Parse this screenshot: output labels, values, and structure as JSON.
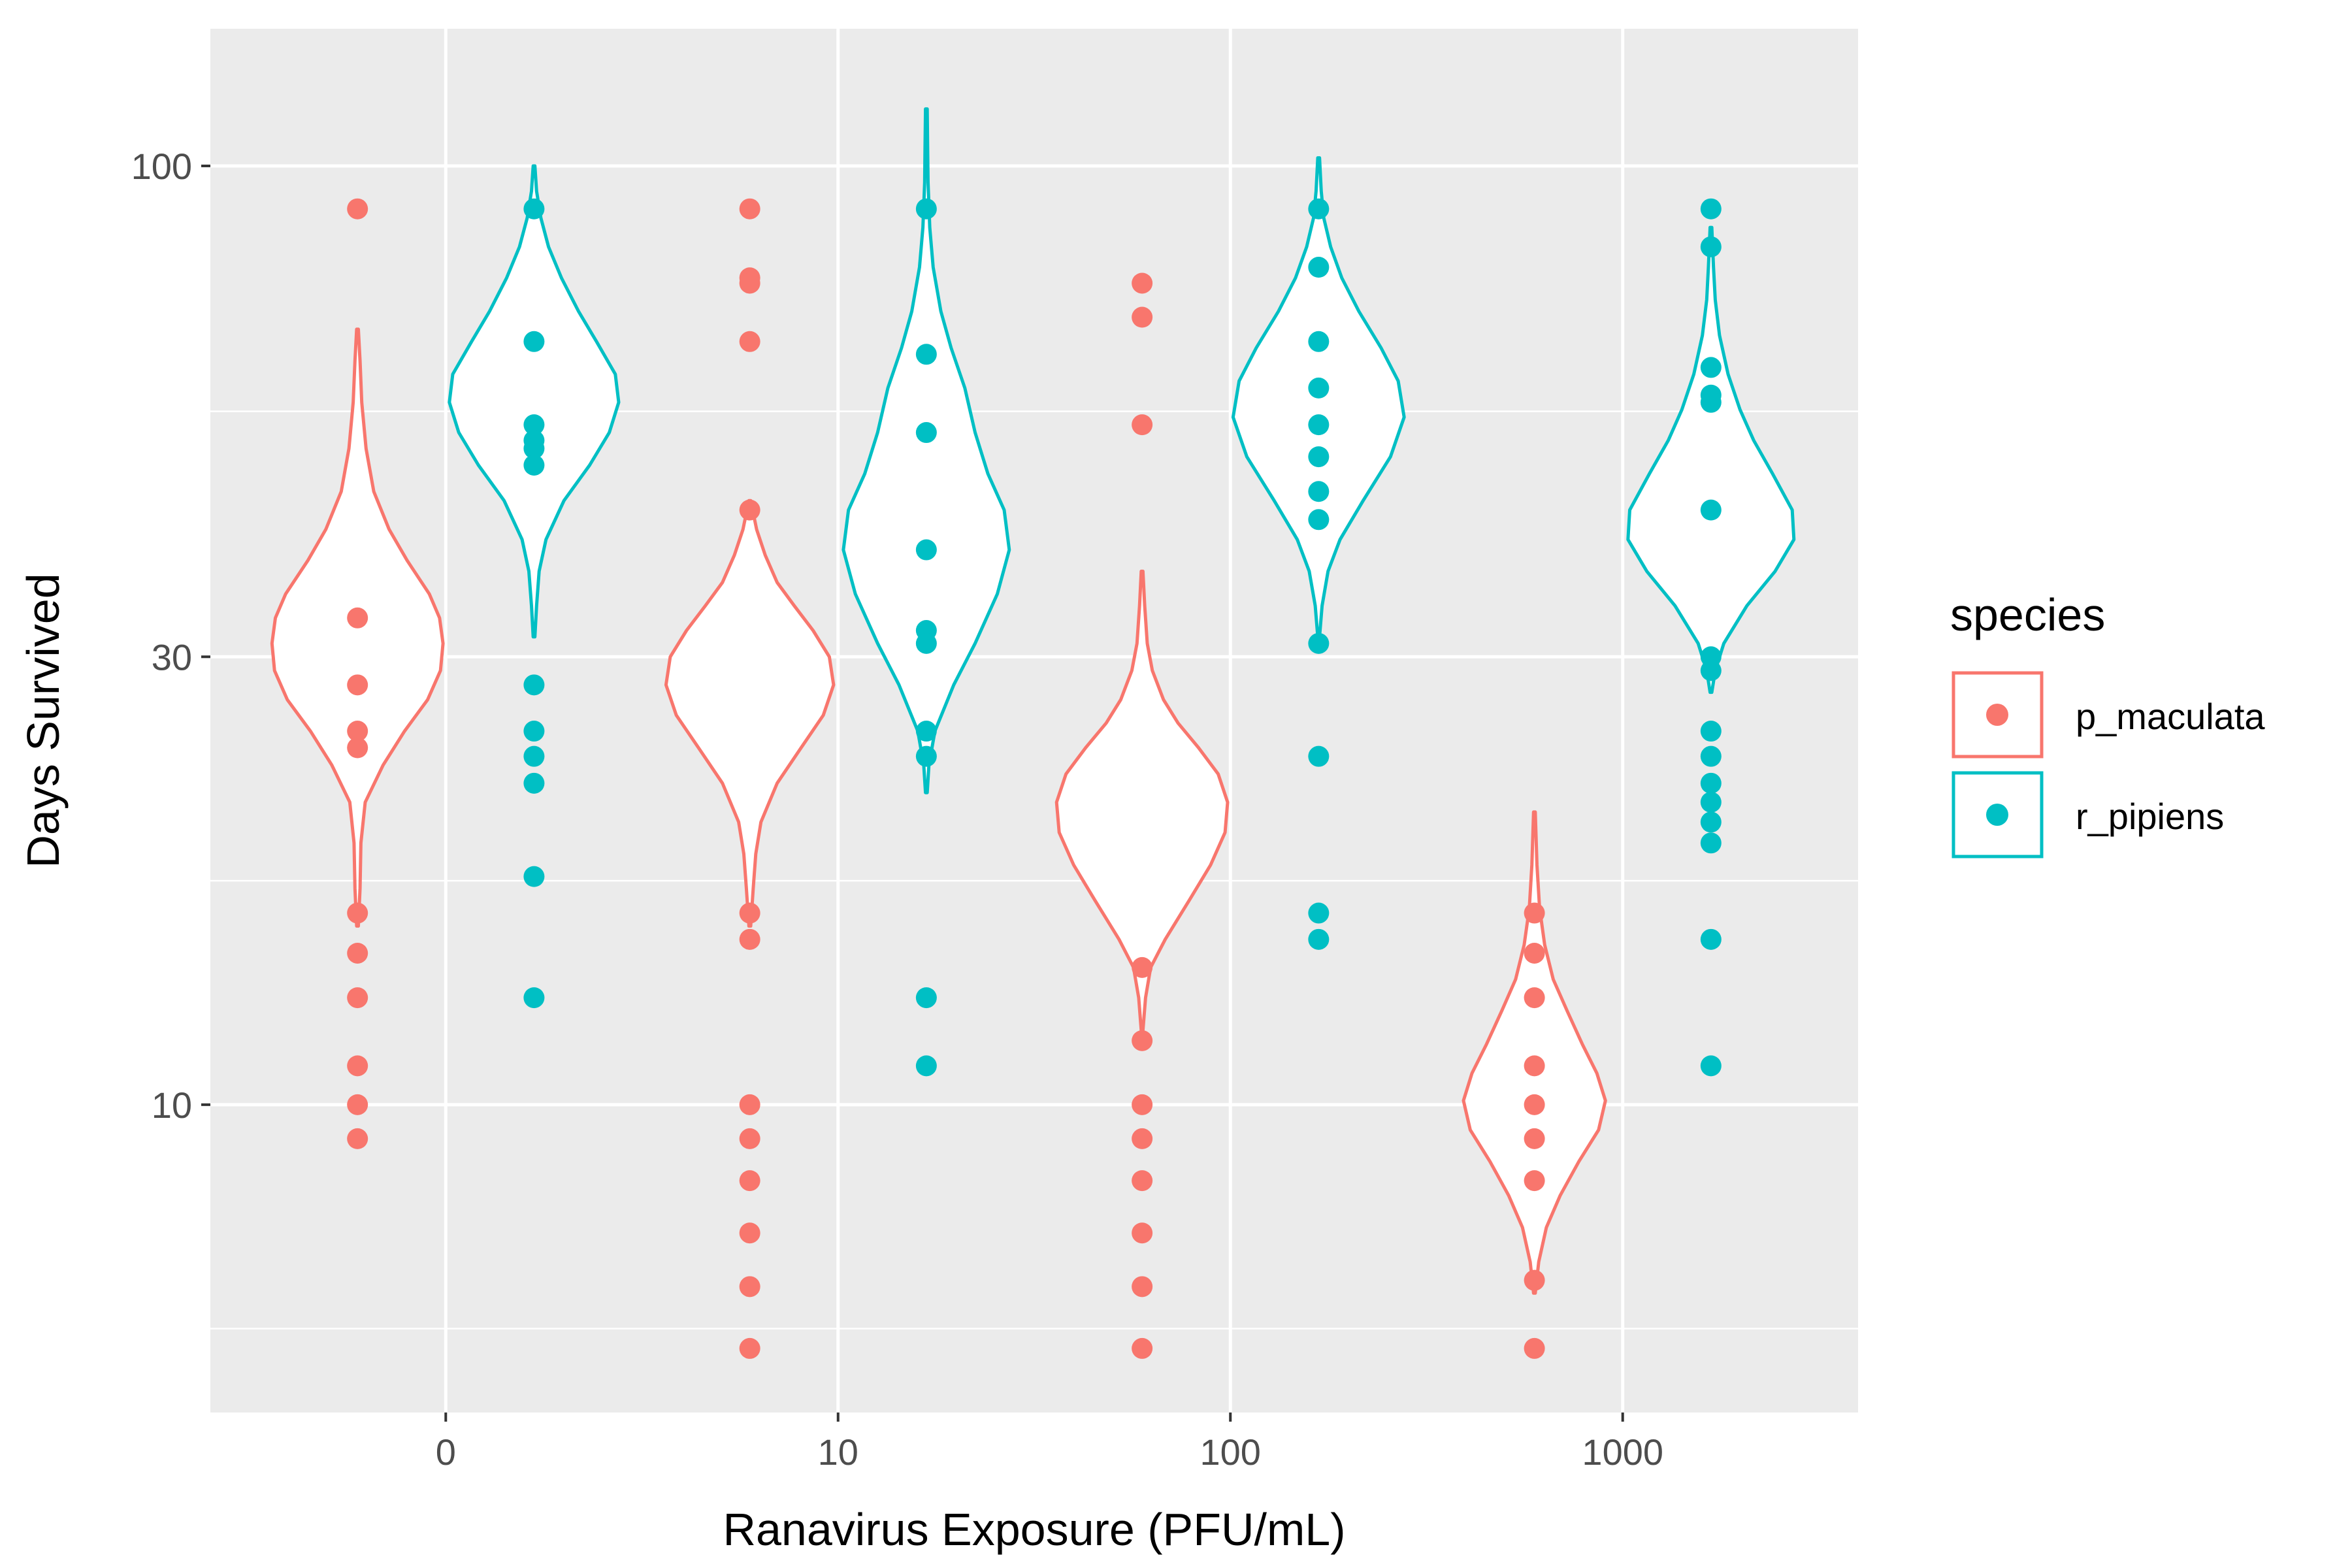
{
  "chart_data": {
    "type": "violin",
    "xlabel": "Ranavirus Exposure (PFU/mL)",
    "ylabel": "Days Survived",
    "y_scale": "log10",
    "ylim": [
      4.7,
      140
    ],
    "y_ticks": [
      10,
      30,
      100
    ],
    "y_tick_labels": [
      "10",
      "30",
      "100"
    ],
    "categories": [
      "0",
      "10",
      "100",
      "1000"
    ],
    "legend": {
      "title": "species",
      "position": "right",
      "entries": [
        "p_maculata",
        "r_pipiens"
      ]
    },
    "grid": true,
    "colors": {
      "p_maculata": "#F8766D",
      "r_pipiens": "#00BFC4",
      "panel": "#EBEBEB"
    },
    "series": [
      {
        "name": "p_maculata",
        "groups": [
          {
            "category": "0",
            "points": [
              90,
              33,
              28,
              25,
              24,
              16,
              14.5,
              13,
              11,
              10,
              9.2
            ],
            "violin_range": [
              15.5,
              67
            ],
            "violin_profile": [
              [
                15.5,
                0.01
              ],
              [
                17,
                0.03
              ],
              [
                19,
                0.04
              ],
              [
                21,
                0.09
              ],
              [
                23,
                0.3
              ],
              [
                25,
                0.55
              ],
              [
                27,
                0.82
              ],
              [
                29,
                0.97
              ],
              [
                31,
                1.0
              ],
              [
                33,
                0.96
              ],
              [
                35,
                0.84
              ],
              [
                38,
                0.58
              ],
              [
                41,
                0.37
              ],
              [
                45,
                0.19
              ],
              [
                50,
                0.1
              ],
              [
                56,
                0.05
              ],
              [
                62,
                0.03
              ],
              [
                67,
                0.01
              ]
            ]
          },
          {
            "category": "10",
            "points": [
              90,
              76,
              75,
              65,
              43,
              16,
              15,
              10,
              9.2,
              8.3,
              7.3,
              6.4,
              5.5
            ],
            "violin_range": [
              15.5,
              44
            ],
            "violin_profile": [
              [
                15.5,
                0.01
              ],
              [
                17,
                0.04
              ],
              [
                18.5,
                0.07
              ],
              [
                20,
                0.13
              ],
              [
                22,
                0.32
              ],
              [
                24,
                0.6
              ],
              [
                26,
                0.86
              ],
              [
                28,
                0.98
              ],
              [
                30,
                0.93
              ],
              [
                32,
                0.74
              ],
              [
                34,
                0.52
              ],
              [
                36,
                0.32
              ],
              [
                38.5,
                0.18
              ],
              [
                41,
                0.08
              ],
              [
                44,
                0.01
              ]
            ]
          },
          {
            "category": "100",
            "points": [
              75,
              69,
              53,
              14,
              11.7,
              10,
              9.2,
              8.3,
              7.3,
              6.4,
              5.5
            ],
            "violin_range": [
              12,
              37
            ],
            "violin_profile": [
              [
                12,
                0.01
              ],
              [
                13,
                0.04
              ],
              [
                14,
                0.1
              ],
              [
                15,
                0.27
              ],
              [
                16.5,
                0.55
              ],
              [
                18,
                0.8
              ],
              [
                19.5,
                0.97
              ],
              [
                21,
                1.0
              ],
              [
                22.5,
                0.89
              ],
              [
                24,
                0.66
              ],
              [
                25.5,
                0.42
              ],
              [
                27,
                0.25
              ],
              [
                29,
                0.12
              ],
              [
                31,
                0.06
              ],
              [
                34,
                0.03
              ],
              [
                37,
                0.01
              ]
            ]
          },
          {
            "category": "1000",
            "points": [
              16,
              14.5,
              13,
              11,
              10,
              9.2,
              8.3,
              6.5,
              5.5
            ],
            "violin_range": [
              6.3,
              20.5
            ],
            "violin_profile": [
              [
                6.3,
                0.01
              ],
              [
                6.8,
                0.05
              ],
              [
                7.4,
                0.14
              ],
              [
                8,
                0.3
              ],
              [
                8.7,
                0.52
              ],
              [
                9.4,
                0.75
              ],
              [
                10.1,
                0.83
              ],
              [
                10.8,
                0.73
              ],
              [
                11.6,
                0.56
              ],
              [
                12.6,
                0.38
              ],
              [
                13.6,
                0.22
              ],
              [
                14.8,
                0.12
              ],
              [
                16.2,
                0.06
              ],
              [
                18,
                0.03
              ],
              [
                20.5,
                0.01
              ]
            ]
          }
        ]
      },
      {
        "name": "r_pipiens",
        "groups": [
          {
            "category": "0",
            "points": [
              90,
              65,
              53,
              51,
              50,
              48,
              28,
              25,
              23.5,
              22,
              17.5,
              13
            ],
            "violin_range": [
              31.5,
              100
            ],
            "violin_profile": [
              [
                31.5,
                0.01
              ],
              [
                34,
                0.03
              ],
              [
                37,
                0.06
              ],
              [
                40,
                0.14
              ],
              [
                44,
                0.35
              ],
              [
                48,
                0.65
              ],
              [
                52,
                0.88
              ],
              [
                56,
                0.99
              ],
              [
                60,
                0.95
              ],
              [
                65,
                0.73
              ],
              [
                70,
                0.52
              ],
              [
                76,
                0.32
              ],
              [
                82,
                0.17
              ],
              [
                88,
                0.08
              ],
              [
                94,
                0.03
              ],
              [
                100,
                0.01
              ]
            ]
          },
          {
            "category": "10",
            "points": [
              90,
              63,
              52,
              39,
              32,
              31,
              25,
              23.5,
              13,
              11
            ],
            "violin_range": [
              21.5,
              115
            ],
            "violin_profile": [
              [
                21.5,
                0.01
              ],
              [
                23,
                0.03
              ],
              [
                25,
                0.1
              ],
              [
                28,
                0.32
              ],
              [
                31,
                0.57
              ],
              [
                35,
                0.83
              ],
              [
                39,
                0.97
              ],
              [
                43,
                0.91
              ],
              [
                47,
                0.72
              ],
              [
                52,
                0.57
              ],
              [
                58,
                0.45
              ],
              [
                64,
                0.29
              ],
              [
                70,
                0.17
              ],
              [
                78,
                0.08
              ],
              [
                86,
                0.04
              ],
              [
                96,
                0.02
              ],
              [
                105,
                0.015
              ],
              [
                115,
                0.01
              ]
            ]
          },
          {
            "category": "100",
            "points": [
              90,
              78,
              65,
              58,
              53,
              49,
              45,
              42,
              31,
              23.5,
              16,
              15
            ],
            "violin_range": [
              31.5,
              102
            ],
            "violin_profile": [
              [
                31.5,
                0.01
              ],
              [
                34,
                0.04
              ],
              [
                37,
                0.11
              ],
              [
                40,
                0.25
              ],
              [
                44,
                0.52
              ],
              [
                49,
                0.84
              ],
              [
                54,
                1.0
              ],
              [
                59,
                0.93
              ],
              [
                64,
                0.73
              ],
              [
                70,
                0.47
              ],
              [
                76,
                0.27
              ],
              [
                82,
                0.14
              ],
              [
                88,
                0.06
              ],
              [
                94,
                0.03
              ],
              [
                102,
                0.01
              ]
            ]
          },
          {
            "category": "1000",
            "points": [
              90,
              82,
              61,
              57,
              56,
              43,
              30,
              29,
              25,
              23.5,
              22,
              21,
              20,
              19,
              15,
              11
            ],
            "violin_range": [
              27.5,
              86
            ],
            "violin_profile": [
              [
                27.5,
                0.01
              ],
              [
                29,
                0.05
              ],
              [
                31,
                0.15
              ],
              [
                34,
                0.42
              ],
              [
                37,
                0.75
              ],
              [
                40,
                0.97
              ],
              [
                43,
                0.95
              ],
              [
                47,
                0.72
              ],
              [
                51,
                0.5
              ],
              [
                55,
                0.34
              ],
              [
                60,
                0.2
              ],
              [
                66,
                0.1
              ],
              [
                72,
                0.05
              ],
              [
                78,
                0.03
              ],
              [
                86,
                0.01
              ]
            ]
          }
        ]
      }
    ]
  }
}
